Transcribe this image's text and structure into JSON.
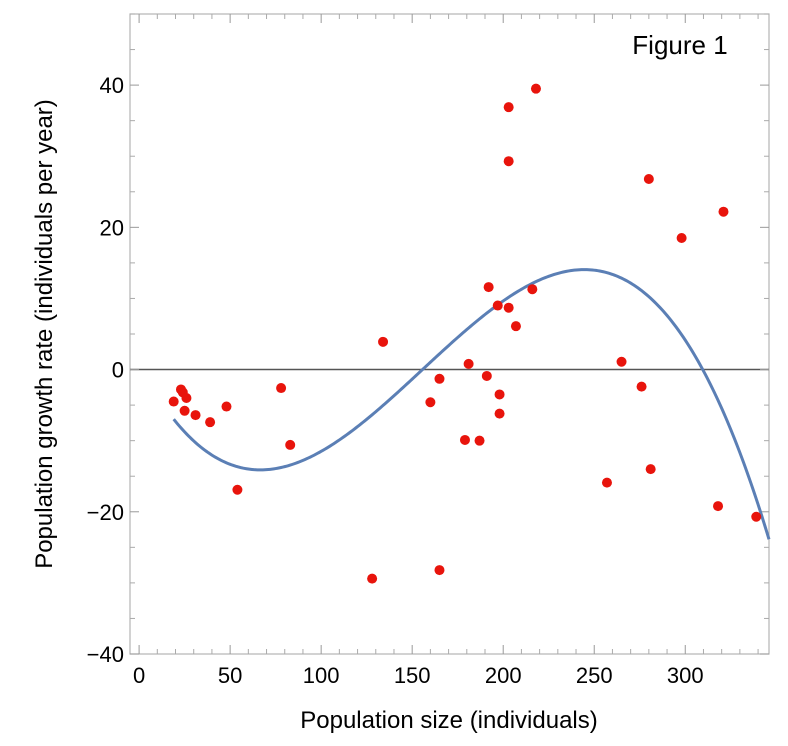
{
  "chart_data": {
    "type": "scatter",
    "annotation": "Figure 1",
    "xlabel": "Population size (individuals)",
    "ylabel": "Population growth rate (individuals per year)",
    "xlim": [
      -5,
      346
    ],
    "ylim": [
      -40,
      50
    ],
    "xticks": [
      0,
      50,
      100,
      150,
      200,
      250,
      300
    ],
    "yticks": [
      -40,
      -20,
      0,
      20,
      40
    ],
    "grid": false,
    "legend": "none",
    "colors": {
      "points": "#e8140c",
      "curve": "#5b7fb5",
      "zero_line": "#555555"
    },
    "points": [
      {
        "x": 19,
        "y": -4.5
      },
      {
        "x": 23,
        "y": -2.8
      },
      {
        "x": 24,
        "y": -3.2
      },
      {
        "x": 26,
        "y": -4.0
      },
      {
        "x": 25,
        "y": -5.8
      },
      {
        "x": 31,
        "y": -6.4
      },
      {
        "x": 39,
        "y": -7.4
      },
      {
        "x": 48,
        "y": -5.2
      },
      {
        "x": 54,
        "y": -16.9
      },
      {
        "x": 78,
        "y": -2.6
      },
      {
        "x": 83,
        "y": -10.6
      },
      {
        "x": 128,
        "y": -29.4
      },
      {
        "x": 134,
        "y": 3.9
      },
      {
        "x": 160,
        "y": -4.6
      },
      {
        "x": 165,
        "y": -28.2
      },
      {
        "x": 165,
        "y": -1.3
      },
      {
        "x": 179,
        "y": -9.9
      },
      {
        "x": 181,
        "y": 0.8
      },
      {
        "x": 187,
        "y": -10.0
      },
      {
        "x": 191,
        "y": -0.9
      },
      {
        "x": 192,
        "y": 11.6
      },
      {
        "x": 197,
        "y": 9.0
      },
      {
        "x": 198,
        "y": -3.5
      },
      {
        "x": 198,
        "y": -6.2
      },
      {
        "x": 203,
        "y": 8.7
      },
      {
        "x": 203,
        "y": 29.3
      },
      {
        "x": 203,
        "y": 36.9
      },
      {
        "x": 207,
        "y": 6.1
      },
      {
        "x": 216,
        "y": 11.3
      },
      {
        "x": 218,
        "y": 39.5
      },
      {
        "x": 257,
        "y": -15.9
      },
      {
        "x": 265,
        "y": 1.1
      },
      {
        "x": 276,
        "y": -2.4
      },
      {
        "x": 280,
        "y": 26.8
      },
      {
        "x": 281,
        "y": -14.0
      },
      {
        "x": 298,
        "y": 18.5
      },
      {
        "x": 318,
        "y": -19.2
      },
      {
        "x": 321,
        "y": 22.2
      },
      {
        "x": 339,
        "y": -20.7
      }
    ],
    "fit_curve": {
      "type": "cubic",
      "coefficients": [
        0.6875,
        -0.4886,
        0.004667,
        -1e-05
      ],
      "x_range": [
        19,
        346
      ]
    }
  }
}
